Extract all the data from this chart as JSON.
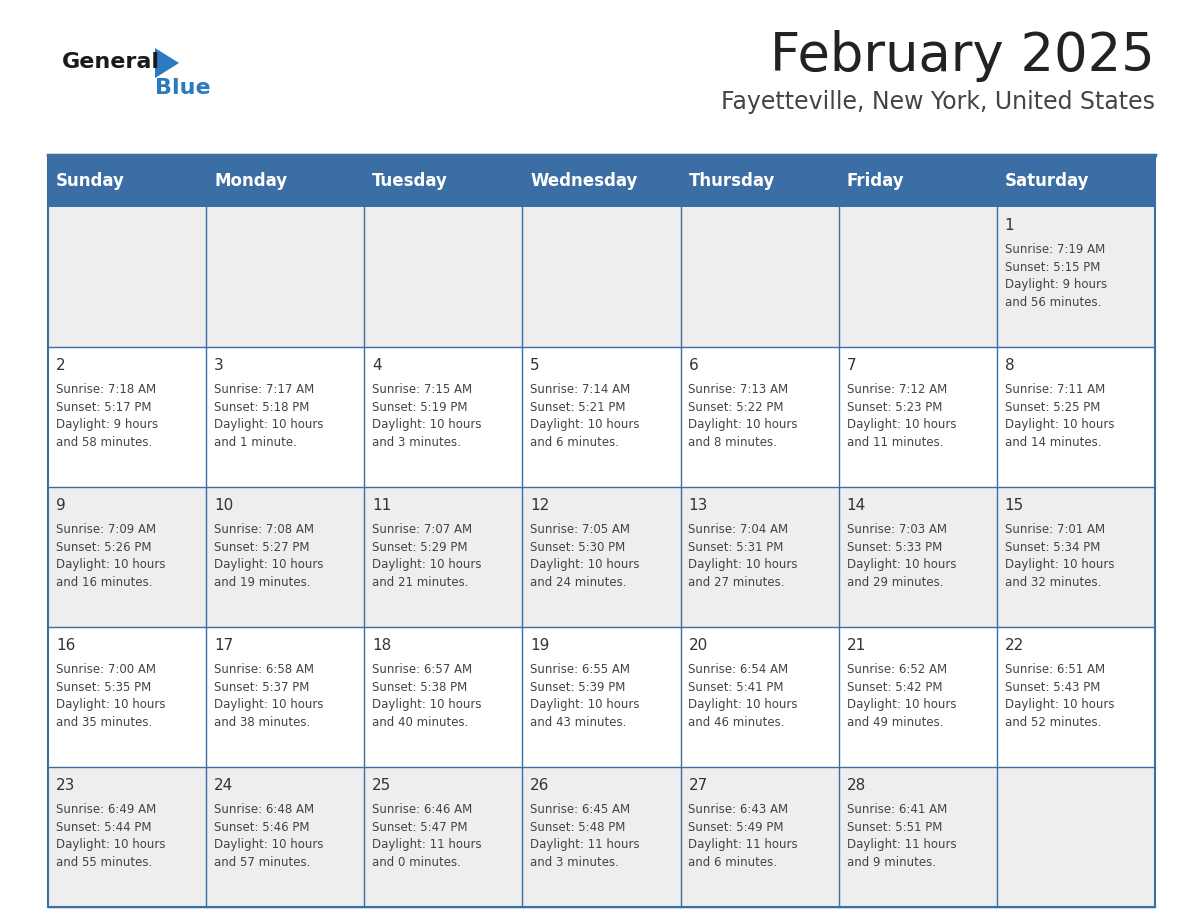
{
  "title": "February 2025",
  "subtitle": "Fayetteville, New York, United States",
  "header_color": "#3a6ea5",
  "header_text_color": "#ffffff",
  "day_names": [
    "Sunday",
    "Monday",
    "Tuesday",
    "Wednesday",
    "Thursday",
    "Friday",
    "Saturday"
  ],
  "border_color": "#3a6ea5",
  "row_bg_even": "#eeeeee",
  "row_bg_odd": "#ffffff",
  "cell_text_color": "#444444",
  "day_number_color": "#333333",
  "title_fontsize": 38,
  "subtitle_fontsize": 17,
  "header_fontsize": 12,
  "day_num_fontsize": 11,
  "cell_fontsize": 8.5,
  "logo_general_color": "#1a1a1a",
  "logo_blue_color": "#2a7abf",
  "logo_triangle_color": "#2a7abf",
  "calendar": [
    [
      null,
      null,
      null,
      null,
      null,
      null,
      {
        "day": 1,
        "sunrise": "7:19 AM",
        "sunset": "5:15 PM",
        "daylight": "9 hours\nand 56 minutes."
      }
    ],
    [
      {
        "day": 2,
        "sunrise": "7:18 AM",
        "sunset": "5:17 PM",
        "daylight": "9 hours\nand 58 minutes."
      },
      {
        "day": 3,
        "sunrise": "7:17 AM",
        "sunset": "5:18 PM",
        "daylight": "10 hours\nand 1 minute."
      },
      {
        "day": 4,
        "sunrise": "7:15 AM",
        "sunset": "5:19 PM",
        "daylight": "10 hours\nand 3 minutes."
      },
      {
        "day": 5,
        "sunrise": "7:14 AM",
        "sunset": "5:21 PM",
        "daylight": "10 hours\nand 6 minutes."
      },
      {
        "day": 6,
        "sunrise": "7:13 AM",
        "sunset": "5:22 PM",
        "daylight": "10 hours\nand 8 minutes."
      },
      {
        "day": 7,
        "sunrise": "7:12 AM",
        "sunset": "5:23 PM",
        "daylight": "10 hours\nand 11 minutes."
      },
      {
        "day": 8,
        "sunrise": "7:11 AM",
        "sunset": "5:25 PM",
        "daylight": "10 hours\nand 14 minutes."
      }
    ],
    [
      {
        "day": 9,
        "sunrise": "7:09 AM",
        "sunset": "5:26 PM",
        "daylight": "10 hours\nand 16 minutes."
      },
      {
        "day": 10,
        "sunrise": "7:08 AM",
        "sunset": "5:27 PM",
        "daylight": "10 hours\nand 19 minutes."
      },
      {
        "day": 11,
        "sunrise": "7:07 AM",
        "sunset": "5:29 PM",
        "daylight": "10 hours\nand 21 minutes."
      },
      {
        "day": 12,
        "sunrise": "7:05 AM",
        "sunset": "5:30 PM",
        "daylight": "10 hours\nand 24 minutes."
      },
      {
        "day": 13,
        "sunrise": "7:04 AM",
        "sunset": "5:31 PM",
        "daylight": "10 hours\nand 27 minutes."
      },
      {
        "day": 14,
        "sunrise": "7:03 AM",
        "sunset": "5:33 PM",
        "daylight": "10 hours\nand 29 minutes."
      },
      {
        "day": 15,
        "sunrise": "7:01 AM",
        "sunset": "5:34 PM",
        "daylight": "10 hours\nand 32 minutes."
      }
    ],
    [
      {
        "day": 16,
        "sunrise": "7:00 AM",
        "sunset": "5:35 PM",
        "daylight": "10 hours\nand 35 minutes."
      },
      {
        "day": 17,
        "sunrise": "6:58 AM",
        "sunset": "5:37 PM",
        "daylight": "10 hours\nand 38 minutes."
      },
      {
        "day": 18,
        "sunrise": "6:57 AM",
        "sunset": "5:38 PM",
        "daylight": "10 hours\nand 40 minutes."
      },
      {
        "day": 19,
        "sunrise": "6:55 AM",
        "sunset": "5:39 PM",
        "daylight": "10 hours\nand 43 minutes."
      },
      {
        "day": 20,
        "sunrise": "6:54 AM",
        "sunset": "5:41 PM",
        "daylight": "10 hours\nand 46 minutes."
      },
      {
        "day": 21,
        "sunrise": "6:52 AM",
        "sunset": "5:42 PM",
        "daylight": "10 hours\nand 49 minutes."
      },
      {
        "day": 22,
        "sunrise": "6:51 AM",
        "sunset": "5:43 PM",
        "daylight": "10 hours\nand 52 minutes."
      }
    ],
    [
      {
        "day": 23,
        "sunrise": "6:49 AM",
        "sunset": "5:44 PM",
        "daylight": "10 hours\nand 55 minutes."
      },
      {
        "day": 24,
        "sunrise": "6:48 AM",
        "sunset": "5:46 PM",
        "daylight": "10 hours\nand 57 minutes."
      },
      {
        "day": 25,
        "sunrise": "6:46 AM",
        "sunset": "5:47 PM",
        "daylight": "11 hours\nand 0 minutes."
      },
      {
        "day": 26,
        "sunrise": "6:45 AM",
        "sunset": "5:48 PM",
        "daylight": "11 hours\nand 3 minutes."
      },
      {
        "day": 27,
        "sunrise": "6:43 AM",
        "sunset": "5:49 PM",
        "daylight": "11 hours\nand 6 minutes."
      },
      {
        "day": 28,
        "sunrise": "6:41 AM",
        "sunset": "5:51 PM",
        "daylight": "11 hours\nand 9 minutes."
      },
      null
    ]
  ]
}
